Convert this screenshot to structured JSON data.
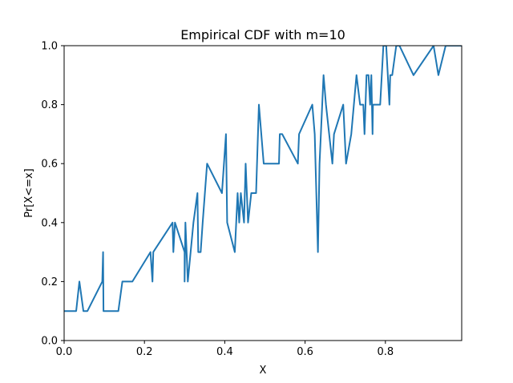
{
  "chart_data": {
    "type": "line",
    "title": "Empirical CDF with m=10",
    "xlabel": "X",
    "ylabel": "Pr[X<=x]",
    "xlim": [
      0.0,
      0.99
    ],
    "ylim": [
      0.0,
      1.0
    ],
    "xticks": [
      "0.0",
      "0.2",
      "0.4",
      "0.6",
      "0.8"
    ],
    "yticks": [
      "0.0",
      "0.2",
      "0.4",
      "0.6",
      "0.8",
      "1.0"
    ],
    "grid": false,
    "line_color": "#1f77b4",
    "series": [
      {
        "x": [
          0.0,
          0.03,
          0.038,
          0.048,
          0.058,
          0.095,
          0.097,
          0.098,
          0.135,
          0.145,
          0.17,
          0.215,
          0.22,
          0.222,
          0.27,
          0.272,
          0.276,
          0.3,
          0.3,
          0.302,
          0.308,
          0.322,
          0.332,
          0.334,
          0.34,
          0.345,
          0.356,
          0.393,
          0.403,
          0.406,
          0.425,
          0.432,
          0.436,
          0.44,
          0.448,
          0.452,
          0.458,
          0.466,
          0.478,
          0.485,
          0.497,
          0.535,
          0.537,
          0.543,
          0.582,
          0.585,
          0.618,
          0.624,
          0.632,
          0.636,
          0.646,
          0.652,
          0.668,
          0.672,
          0.695,
          0.702,
          0.715,
          0.728,
          0.737,
          0.745,
          0.748,
          0.753,
          0.758,
          0.762,
          0.765,
          0.768,
          0.769,
          0.77,
          0.787,
          0.795,
          0.802,
          0.81,
          0.812,
          0.817,
          0.827,
          0.835,
          0.87,
          0.92,
          0.932,
          0.95,
          0.99
        ],
        "y": [
          0.1,
          0.1,
          0.2,
          0.1,
          0.1,
          0.2,
          0.3,
          0.1,
          0.1,
          0.2,
          0.2,
          0.3,
          0.2,
          0.3,
          0.4,
          0.3,
          0.4,
          0.3,
          0.2,
          0.4,
          0.2,
          0.4,
          0.5,
          0.3,
          0.3,
          0.4,
          0.6,
          0.5,
          0.7,
          0.4,
          0.3,
          0.5,
          0.4,
          0.5,
          0.4,
          0.6,
          0.4,
          0.5,
          0.5,
          0.8,
          0.6,
          0.6,
          0.7,
          0.7,
          0.6,
          0.7,
          0.8,
          0.7,
          0.3,
          0.6,
          0.9,
          0.8,
          0.6,
          0.7,
          0.8,
          0.6,
          0.7,
          0.9,
          0.8,
          0.8,
          0.7,
          0.9,
          0.9,
          0.8,
          0.9,
          0.7,
          0.8,
          0.8,
          0.8,
          1.0,
          1.0,
          0.8,
          0.9,
          0.9,
          1.0,
          1.0,
          0.9,
          1.0,
          0.9,
          1.0,
          1.0
        ]
      }
    ]
  }
}
